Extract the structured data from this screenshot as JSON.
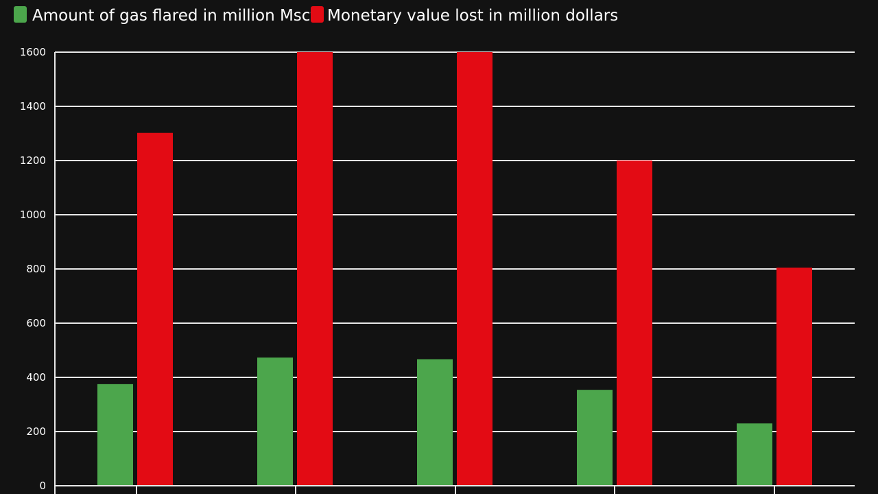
{
  "chart_data": {
    "type": "bar",
    "categories": [
      "",
      "",
      "",
      "",
      ""
    ],
    "series": [
      {
        "name": "Amount of gas flared in million Mscf",
        "color": "#4CA64C",
        "values": [
          375,
          473,
          467,
          354,
          230
        ]
      },
      {
        "name": "Monetary value lost in million dollars",
        "color": "#E30B14",
        "values": [
          1302,
          1600,
          1600,
          1200,
          805
        ]
      }
    ],
    "ylim": [
      0,
      1600
    ],
    "yticks": [
      0,
      200,
      400,
      600,
      800,
      1000,
      1200,
      1400,
      1600
    ],
    "grid": true,
    "legend_position": "top-left",
    "title": "",
    "xlabel": "",
    "ylabel": ""
  }
}
